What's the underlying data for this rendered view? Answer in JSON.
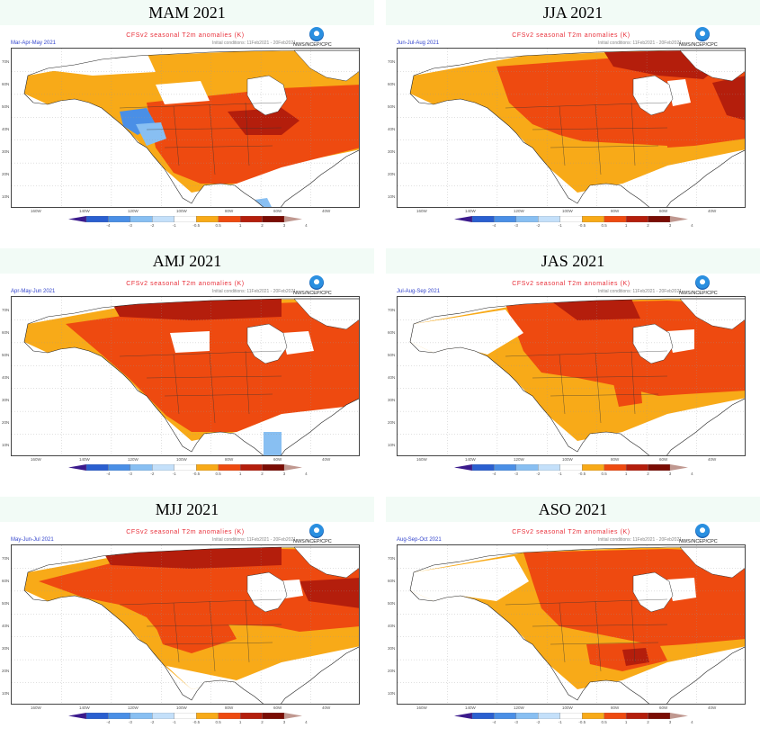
{
  "panel_title": "CFSv2 seasonal T2m anomalies (K)",
  "agency": "NWS/NCEP/CPC",
  "initial_conditions": "Initial conditions: 11Feb2021 - 20Feb2021",
  "longitude_labels": [
    "160W",
    "140W",
    "120W",
    "100W",
    "80W",
    "60W",
    "40W"
  ],
  "latitude_labels": [
    "70N",
    "60N",
    "50N",
    "40N",
    "30N",
    "20N",
    "10N"
  ],
  "colorbar": {
    "tick_labels": [
      "-4",
      "-3",
      "-2",
      "-1",
      "-0.5",
      "0.5",
      "1",
      "2",
      "3",
      "4"
    ],
    "colors": [
      "#3b1a8c",
      "#2a5fd0",
      "#4a8fe6",
      "#88bff2",
      "#c4e0fa",
      "#ffffff",
      "#f8aa18",
      "#ee4a10",
      "#b41e0c",
      "#7a0c04",
      "#c09890"
    ]
  },
  "anomaly_colors": {
    "above_0_5": "#f8aa18",
    "above_1": "#ee4a10",
    "above_2": "#b41e0c",
    "below_0_5": "#88bff2",
    "below_1": "#4a8fe6",
    "near_normal": "#ffffff"
  },
  "panels": [
    {
      "season": "MAM 2021",
      "period": "Mar-Apr-May 2021",
      "pattern": "mam"
    },
    {
      "season": "JJA 2021",
      "period": "Jun-Jul-Aug 2021",
      "pattern": "jja"
    },
    {
      "season": "AMJ 2021",
      "period": "Apr-May-Jun 2021",
      "pattern": "amj"
    },
    {
      "season": "JAS 2021",
      "period": "Jul-Aug-Sep 2021",
      "pattern": "jas"
    },
    {
      "season": "MJJ 2021",
      "period": "May-Jun-Jul 2021",
      "pattern": "mjj"
    },
    {
      "season": "ASO 2021",
      "period": "Aug-Sep-Oct 2021",
      "pattern": "aso"
    }
  ]
}
